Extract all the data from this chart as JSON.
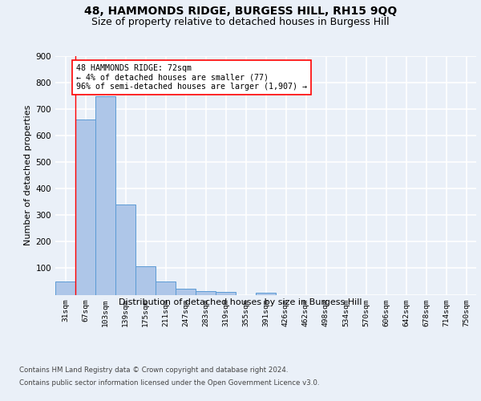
{
  "title": "48, HAMMONDS RIDGE, BURGESS HILL, RH15 9QQ",
  "subtitle": "Size of property relative to detached houses in Burgess Hill",
  "xlabel": "Distribution of detached houses by size in Burgess Hill",
  "ylabel": "Number of detached properties",
  "bar_labels": [
    "31sqm",
    "67sqm",
    "103sqm",
    "139sqm",
    "175sqm",
    "211sqm",
    "247sqm",
    "283sqm",
    "319sqm",
    "355sqm",
    "391sqm",
    "426sqm",
    "462sqm",
    "498sqm",
    "534sqm",
    "570sqm",
    "606sqm",
    "642sqm",
    "678sqm",
    "714sqm",
    "750sqm"
  ],
  "bar_values": [
    50,
    660,
    748,
    340,
    108,
    50,
    24,
    14,
    10,
    0,
    8,
    0,
    0,
    0,
    0,
    0,
    0,
    0,
    0,
    0,
    0
  ],
  "bar_color": "#aec6e8",
  "bar_edge_color": "#5b9bd5",
  "annotation_title": "48 HAMMONDS RIDGE: 72sqm",
  "annotation_line1": "← 4% of detached houses are smaller (77)",
  "annotation_line2": "96% of semi-detached houses are larger (1,907) →",
  "footer1": "Contains HM Land Registry data © Crown copyright and database right 2024.",
  "footer2": "Contains public sector information licensed under the Open Government Licence v3.0.",
  "ylim": [
    0,
    900
  ],
  "yticks": [
    0,
    100,
    200,
    300,
    400,
    500,
    600,
    700,
    800,
    900
  ],
  "background_color": "#eaf0f8",
  "plot_bg_color": "#eaf0f8",
  "grid_color": "#ffffff",
  "title_fontsize": 10,
  "subtitle_fontsize": 9,
  "vline_position": 0.5
}
